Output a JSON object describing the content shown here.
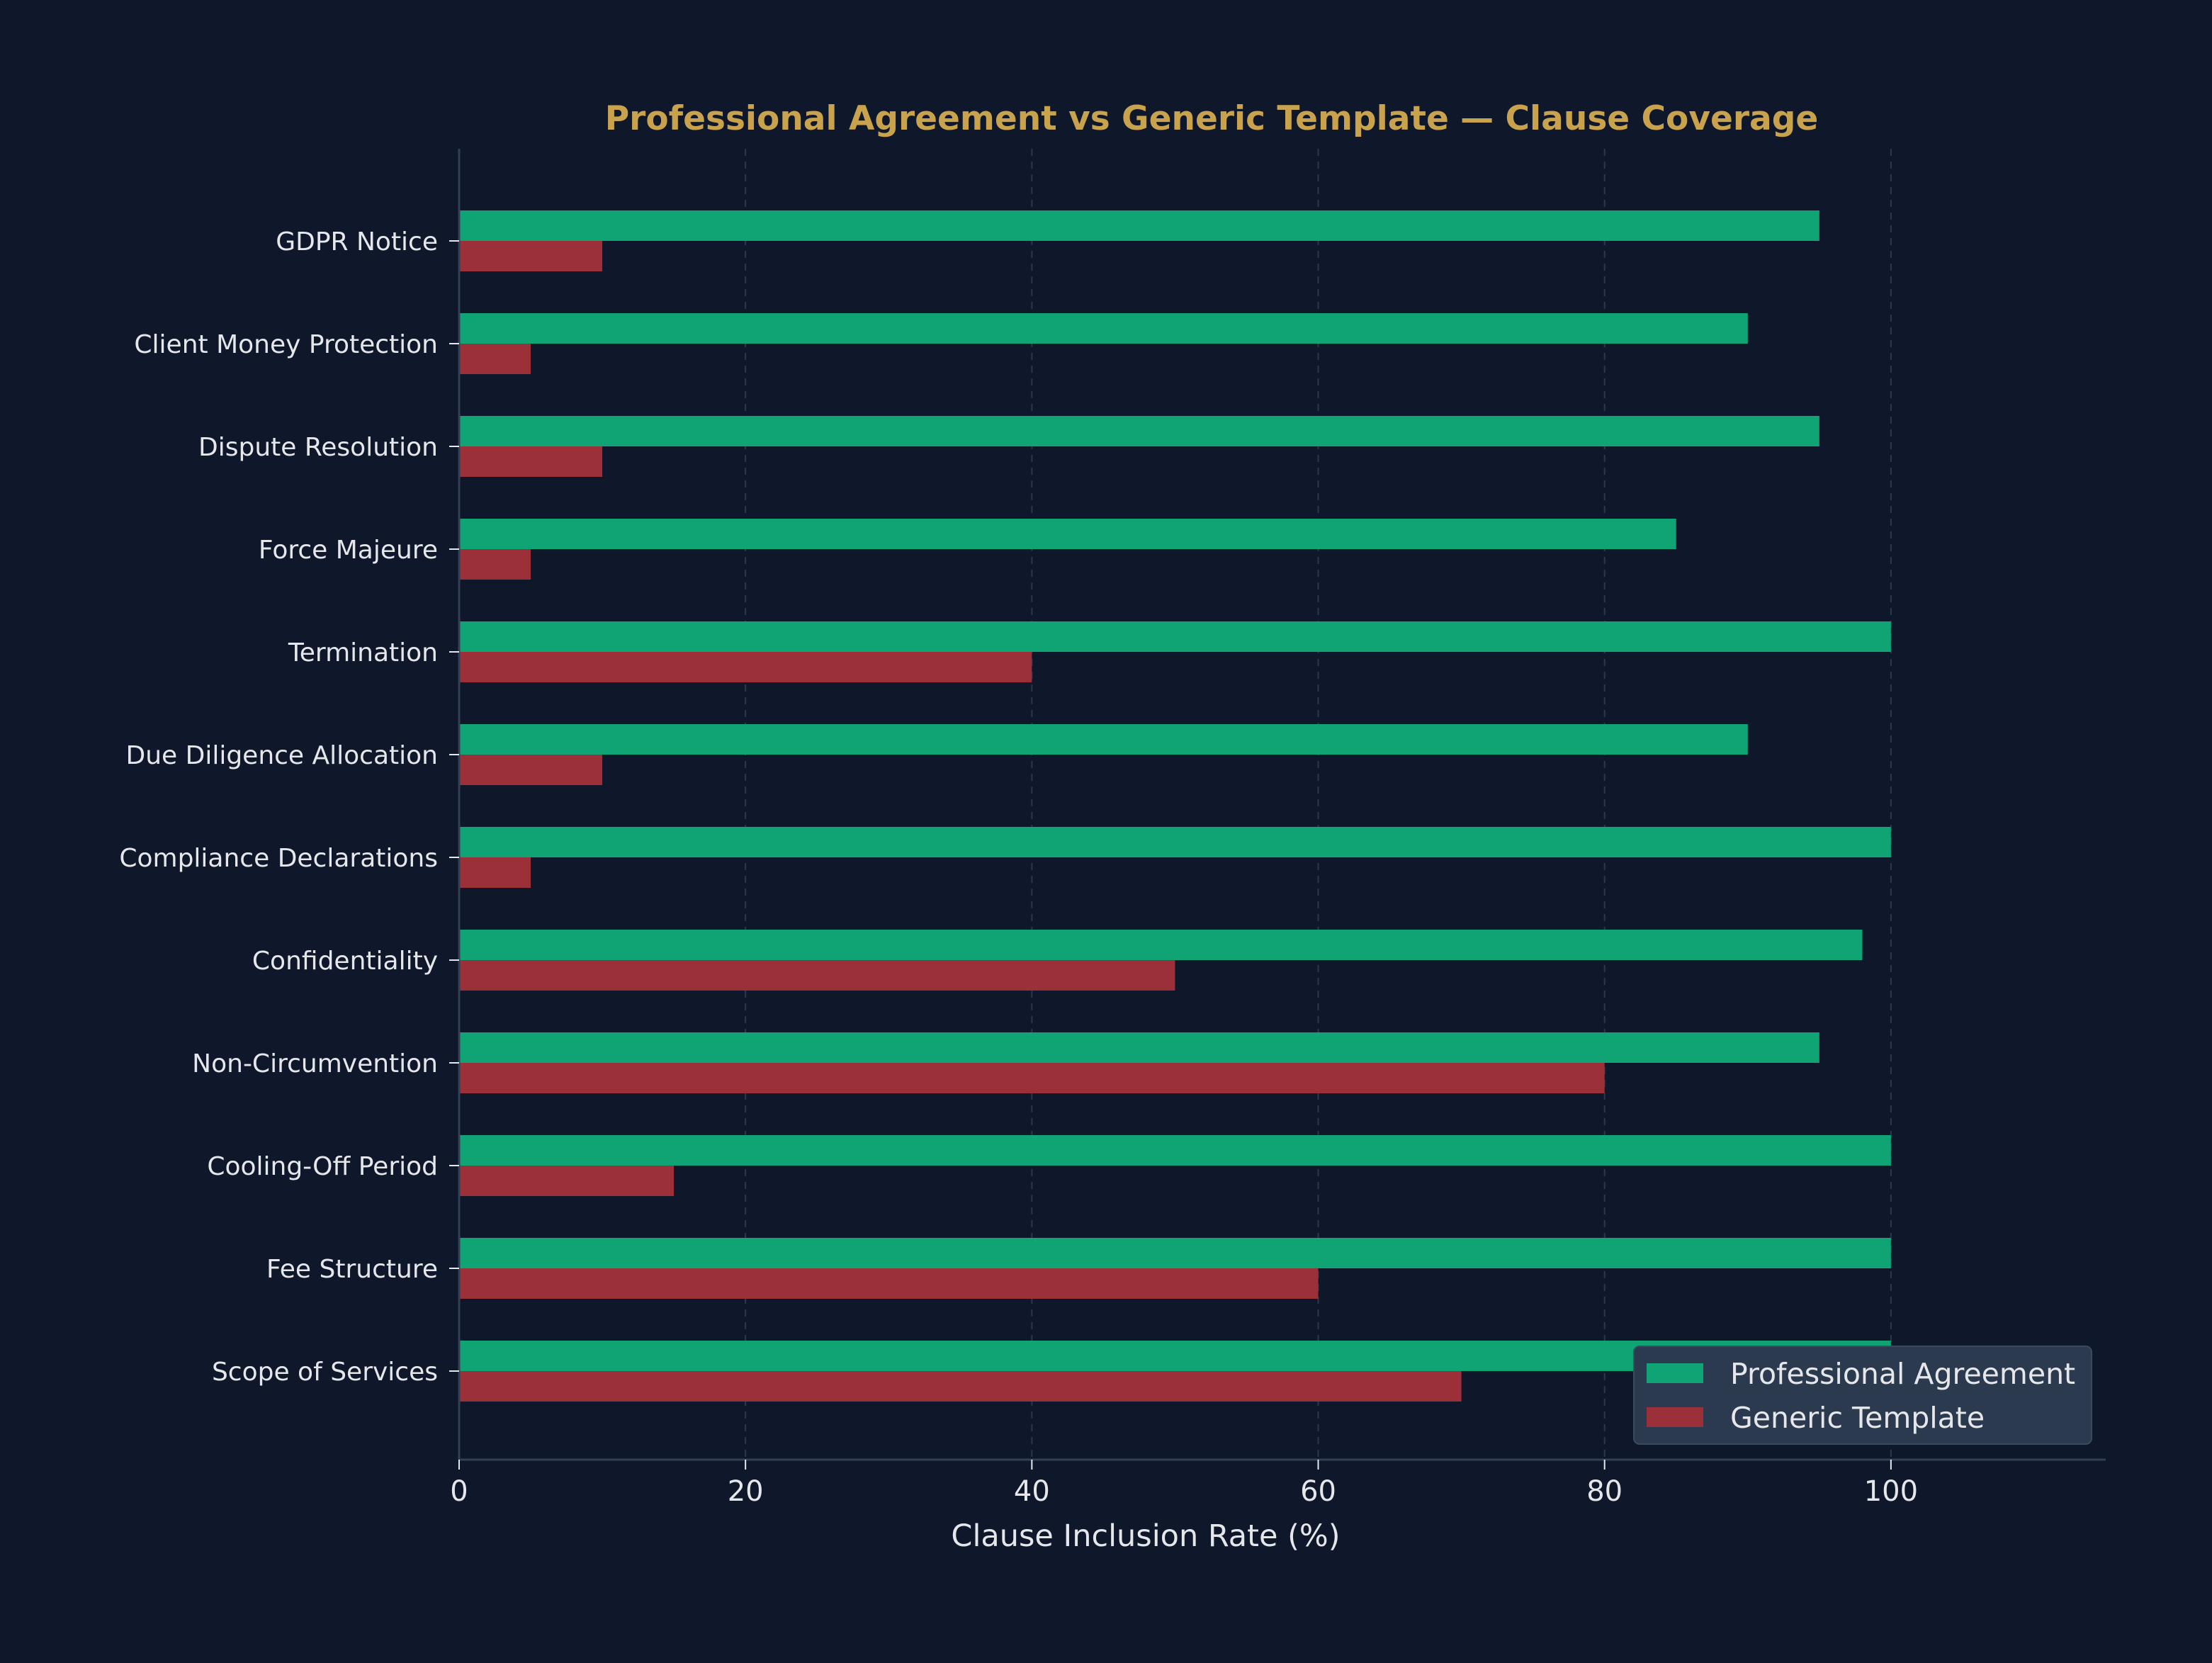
{
  "chart_data": {
    "type": "bar",
    "orientation": "horizontal",
    "title": "Professional Agreement vs Generic Template — Clause Coverage",
    "xlabel": "Clause Inclusion Rate (%)",
    "ylabel": "",
    "xlim": [
      0,
      115
    ],
    "xticks": [
      0,
      20,
      40,
      60,
      80,
      100
    ],
    "grid": "vertical dashed",
    "legend": "bottom-right",
    "categories": [
      "Scope of Services",
      "Fee Structure",
      "Cooling-Off Period",
      "Non-Circumvention",
      "Confidentiality",
      "Compliance Declarations",
      "Due Diligence Allocation",
      "Termination",
      "Force Majeure",
      "Dispute Resolution",
      "Client Money Protection",
      "GDPR Notice"
    ],
    "series": [
      {
        "name": "Professional Agreement",
        "color": "#10a374",
        "values": [
          100,
          100,
          100,
          95,
          98,
          100,
          90,
          100,
          85,
          95,
          90,
          95
        ]
      },
      {
        "name": "Generic Template",
        "color": "#9b3039",
        "values": [
          70,
          60,
          15,
          80,
          50,
          5,
          10,
          40,
          5,
          10,
          5,
          10
        ]
      }
    ],
    "colors": {
      "background": "#0f172a",
      "title": "#c9a24d",
      "text": "#e5e7eb",
      "axis": "#334155",
      "grid": "#334155",
      "legend_bg": "#2b3a4e"
    }
  }
}
